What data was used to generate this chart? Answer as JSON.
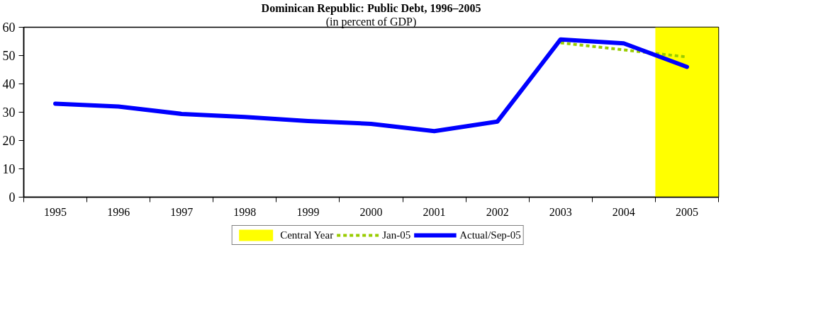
{
  "chart_data": {
    "type": "line",
    "title": "Dominican Republic: Public Debt, 1996–2005",
    "subtitle": "(in percent of GDP)",
    "categories": [
      "1995",
      "1996",
      "1997",
      "1998",
      "1999",
      "2000",
      "2001",
      "2002",
      "2003",
      "2004",
      "2005"
    ],
    "series": [
      {
        "name": "Jan-05",
        "color": "#99cc00",
        "line_style": "dashed",
        "values": [
          null,
          null,
          null,
          null,
          null,
          null,
          null,
          null,
          54.5,
          52.0,
          49.5
        ]
      },
      {
        "name": "Actual/Sep-05",
        "color": "#0000ff",
        "line_style": "solid",
        "values": [
          33.0,
          32.0,
          29.4,
          28.3,
          26.9,
          25.9,
          23.3,
          26.7,
          55.7,
          54.3,
          46.0
        ]
      }
    ],
    "bands": [
      {
        "axis": "x",
        "from": "2005",
        "to": "2005",
        "label": "Central Year",
        "color": "#ffff00"
      }
    ],
    "ylim": [
      0,
      60
    ],
    "yticks": [
      0,
      10,
      20,
      30,
      40,
      50,
      60
    ],
    "grid": false,
    "legend": "bottom",
    "marker": "none"
  }
}
